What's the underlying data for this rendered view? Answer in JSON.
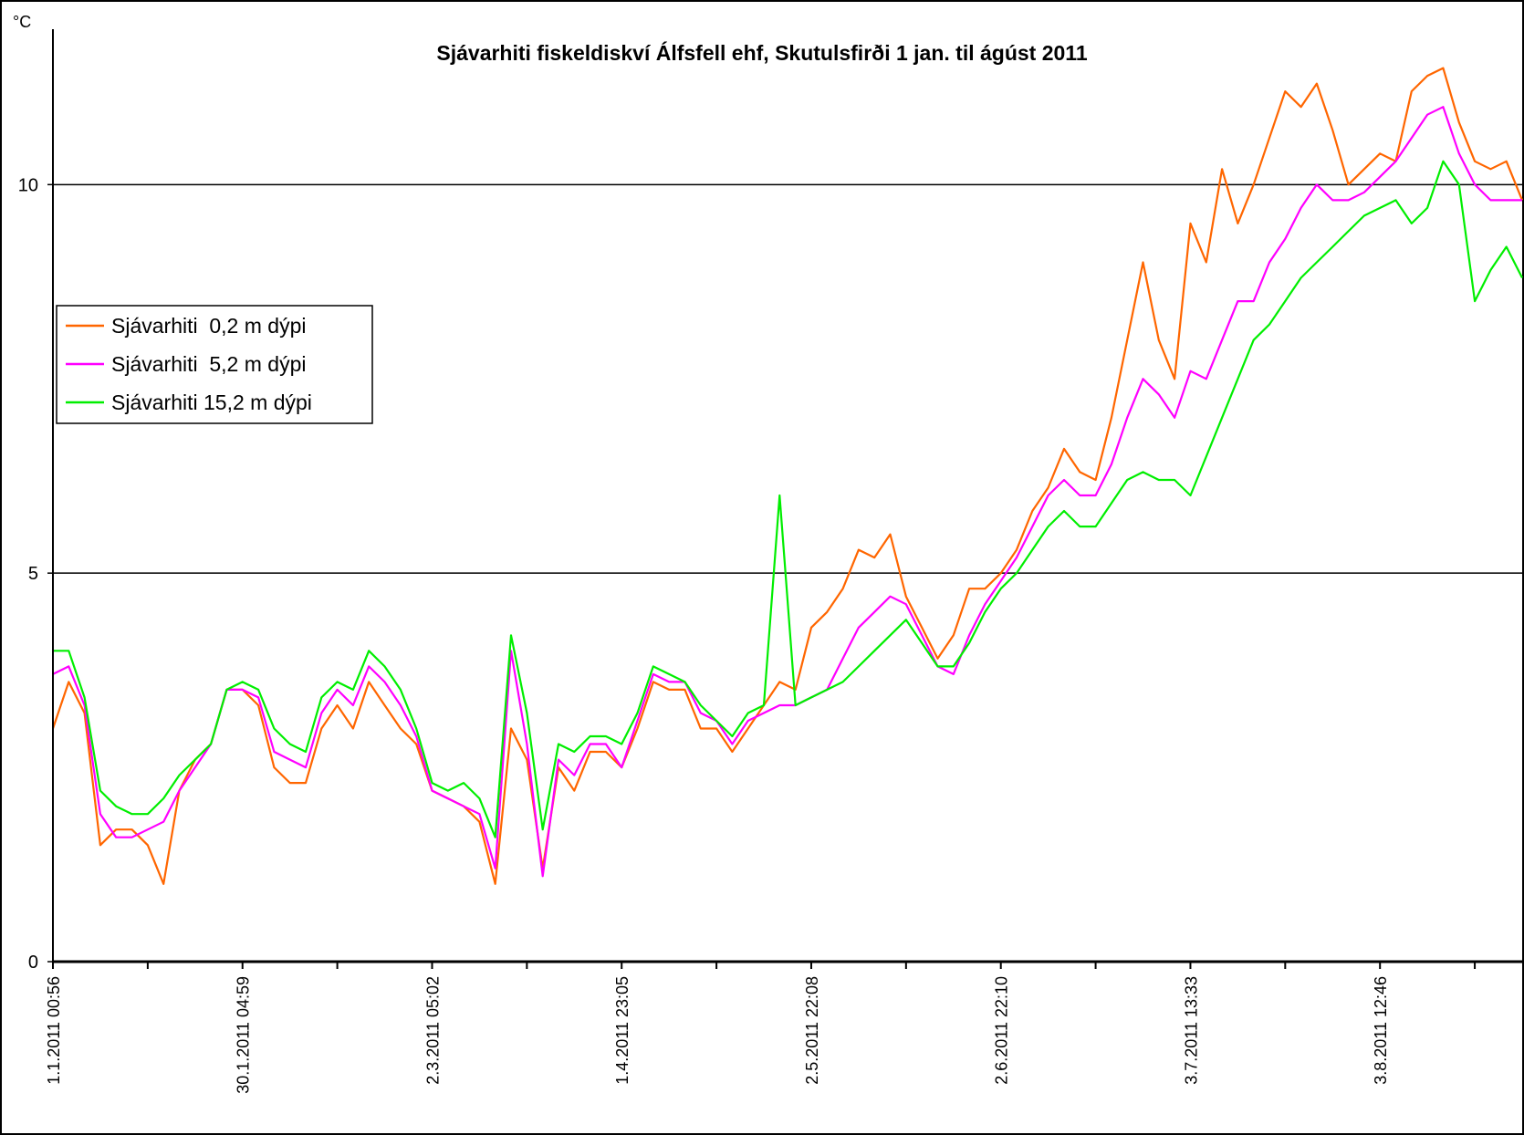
{
  "chart_data": {
    "type": "line",
    "title": "Sjávarhiti fiskeldiskví Álfsfell ehf, Skutulsfirði 1 jan. til ágúst 2011",
    "y_label": "°C",
    "categories": [
      "1.1.2011 00:56",
      null,
      null,
      null,
      null,
      null,
      null,
      null,
      null,
      null,
      null,
      null,
      "30.1.2011 04:59",
      null,
      null,
      null,
      null,
      null,
      null,
      null,
      null,
      null,
      null,
      null,
      "2.3.2011 05:02",
      null,
      null,
      null,
      null,
      null,
      null,
      null,
      null,
      null,
      null,
      null,
      "1.4.2011 23:05",
      null,
      null,
      null,
      null,
      null,
      null,
      null,
      null,
      null,
      null,
      null,
      "2.5.2011 22:08",
      null,
      null,
      null,
      null,
      null,
      null,
      null,
      null,
      null,
      null,
      null,
      "2.6.2011 22:10",
      null,
      null,
      null,
      null,
      null,
      null,
      null,
      null,
      null,
      null,
      null,
      "3.7.2011 13:33",
      null,
      null,
      null,
      null,
      null,
      null,
      null,
      null,
      null,
      null,
      null,
      "3.8.2011 12:46",
      null,
      null,
      null,
      null,
      null,
      null,
      null,
      null,
      null
    ],
    "series": [
      {
        "name": "Sjávarhiti  0,2 m dýpi",
        "color": "#ff6600",
        "values": [
          3.0,
          3.6,
          3.2,
          1.5,
          1.7,
          1.7,
          1.5,
          1.0,
          2.2,
          2.6,
          2.8,
          3.5,
          3.5,
          3.3,
          2.5,
          2.3,
          2.3,
          3.0,
          3.3,
          3.0,
          3.6,
          3.3,
          3.0,
          2.8,
          2.2,
          2.1,
          2.0,
          1.8,
          1.0,
          3.0,
          2.6,
          1.2,
          2.5,
          2.2,
          2.7,
          2.7,
          2.5,
          3.0,
          3.6,
          3.5,
          3.5,
          3.0,
          3.0,
          2.7,
          3.0,
          3.3,
          3.6,
          3.5,
          4.3,
          4.5,
          4.8,
          5.3,
          5.2,
          5.5,
          4.7,
          4.3,
          3.9,
          4.2,
          4.8,
          4.8,
          5.0,
          5.3,
          5.8,
          6.1,
          6.6,
          6.3,
          6.2,
          7.0,
          8.0,
          9.0,
          8.0,
          7.5,
          9.5,
          9.0,
          10.2,
          9.5,
          10.0,
          10.6,
          11.2,
          11.0,
          11.3,
          10.7,
          10.0,
          10.2,
          10.4,
          10.3,
          11.2,
          11.4,
          11.5,
          10.8,
          10.3,
          10.2,
          10.3,
          9.8
        ]
      },
      {
        "name": "Sjávarhiti  5,2 m dýpi",
        "color": "#ff00ff",
        "values": [
          3.7,
          3.8,
          3.3,
          1.9,
          1.6,
          1.6,
          1.7,
          1.8,
          2.2,
          2.5,
          2.8,
          3.5,
          3.5,
          3.4,
          2.7,
          2.6,
          2.5,
          3.2,
          3.5,
          3.3,
          3.8,
          3.6,
          3.3,
          2.9,
          2.2,
          2.1,
          2.0,
          1.9,
          1.2,
          4.0,
          2.8,
          1.1,
          2.6,
          2.4,
          2.8,
          2.8,
          2.5,
          3.1,
          3.7,
          3.6,
          3.6,
          3.2,
          3.1,
          2.8,
          3.1,
          3.2,
          3.3,
          3.3,
          3.4,
          3.5,
          3.9,
          4.3,
          4.5,
          4.7,
          4.6,
          4.2,
          3.8,
          3.7,
          4.2,
          4.6,
          4.9,
          5.2,
          5.6,
          6.0,
          6.2,
          6.0,
          6.0,
          6.4,
          7.0,
          7.5,
          7.3,
          7.0,
          7.6,
          7.5,
          8.0,
          8.5,
          8.5,
          9.0,
          9.3,
          9.7,
          10.0,
          9.8,
          9.8,
          9.9,
          10.1,
          10.3,
          10.6,
          10.9,
          11.0,
          10.4,
          10.0,
          9.8,
          9.8,
          9.8
        ]
      },
      {
        "name": "Sjávarhiti 15,2 m dýpi",
        "color": "#00ee00",
        "values": [
          4.0,
          4.0,
          3.4,
          2.2,
          2.0,
          1.9,
          1.9,
          2.1,
          2.4,
          2.6,
          2.8,
          3.5,
          3.6,
          3.5,
          3.0,
          2.8,
          2.7,
          3.4,
          3.6,
          3.5,
          4.0,
          3.8,
          3.5,
          3.0,
          2.3,
          2.2,
          2.3,
          2.1,
          1.6,
          4.2,
          3.2,
          1.7,
          2.8,
          2.7,
          2.9,
          2.9,
          2.8,
          3.2,
          3.8,
          3.7,
          3.6,
          3.3,
          3.1,
          2.9,
          3.2,
          3.3,
          6.0,
          3.3,
          3.4,
          3.5,
          3.6,
          3.8,
          4.0,
          4.2,
          4.4,
          4.1,
          3.8,
          3.8,
          4.1,
          4.5,
          4.8,
          5.0,
          5.3,
          5.6,
          5.8,
          5.6,
          5.6,
          5.9,
          6.2,
          6.3,
          6.2,
          6.2,
          6.0,
          6.5,
          7.0,
          7.5,
          8.0,
          8.2,
          8.5,
          8.8,
          9.0,
          9.2,
          9.4,
          9.6,
          9.7,
          9.8,
          9.5,
          9.7,
          10.3,
          10.0,
          8.5,
          8.9,
          9.2,
          8.8
        ]
      }
    ],
    "ylim": [
      0,
      12
    ],
    "yticks": [
      0,
      5,
      10
    ],
    "grid": true,
    "legend": "left"
  }
}
